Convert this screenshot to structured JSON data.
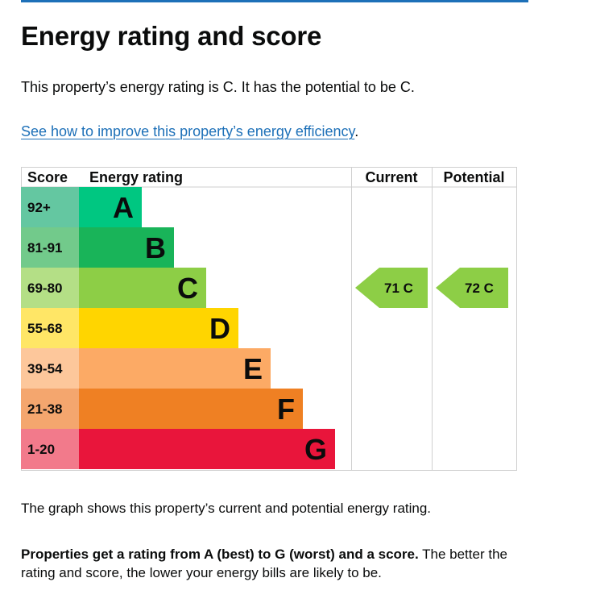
{
  "page": {
    "heading": "Energy rating and score",
    "intro": "This property’s energy rating is C. It has the potential to be C.",
    "link_text": "See how to improve this property’s energy efficiency",
    "link_suffix": ".",
    "caption": "The graph shows this property’s current and potential energy rating.",
    "summary_bold": "Properties get a rating from A (best) to G (worst) and a score.",
    "summary_rest": " The better the rating and score, the lower your energy bills are likely to be."
  },
  "chart_data": {
    "type": "table",
    "headers": {
      "score": "Score",
      "rating": "Energy rating",
      "current": "Current",
      "potential": "Potential"
    },
    "bands": [
      {
        "band": "A",
        "range": "92+",
        "color": "#00c781",
        "range_color": "#64c7a1"
      },
      {
        "band": "B",
        "range": "81-91",
        "color": "#19b459",
        "range_color": "#72ca8b"
      },
      {
        "band": "C",
        "range": "69-80",
        "color": "#8dce46",
        "range_color": "#b4df86"
      },
      {
        "band": "D",
        "range": "55-68",
        "color": "#ffd500",
        "range_color": "#ffe666"
      },
      {
        "band": "E",
        "range": "39-54",
        "color": "#fcaa65",
        "range_color": "#fdc79b"
      },
      {
        "band": "F",
        "range": "21-38",
        "color": "#ef8023",
        "range_color": "#f4a66e"
      },
      {
        "band": "G",
        "range": "1-20",
        "color": "#e9153b",
        "range_color": "#f27a8b"
      }
    ],
    "current": {
      "score": 71,
      "band": "C",
      "label": "71 C",
      "color": "#8dce46"
    },
    "potential": {
      "score": 72,
      "band": "C",
      "label": "72 C",
      "color": "#8dce46"
    }
  }
}
